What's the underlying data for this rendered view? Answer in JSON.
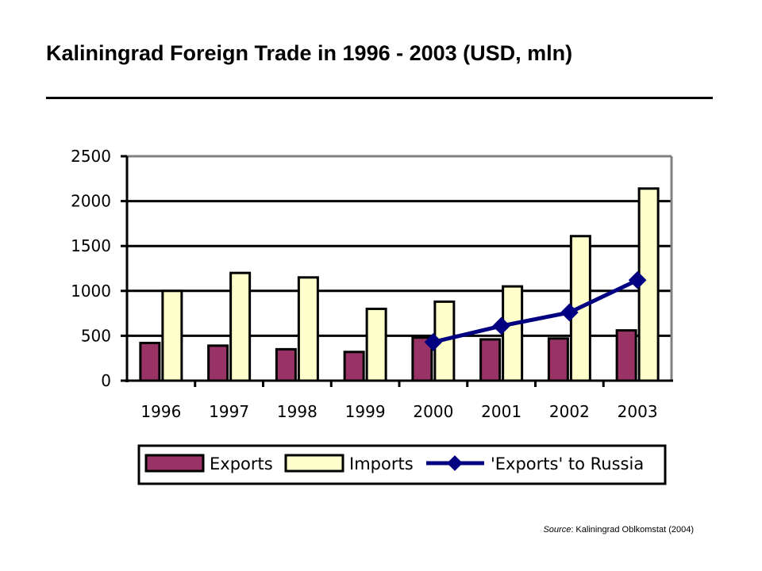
{
  "title": "Kaliningrad Foreign Trade in 1996 - 2003 (USD, mln)",
  "source": {
    "label": "Source",
    "text": ": Kaliningrad Oblkomstat (2004)"
  },
  "colors": {
    "exports": "#993366",
    "imports": "#FFFFCC",
    "russia": "#000080",
    "grid": "#000000"
  },
  "chart_data": {
    "type": "bar",
    "categories": [
      "1996",
      "1997",
      "1998",
      "1999",
      "2000",
      "2001",
      "2002",
      "2003"
    ],
    "series": [
      {
        "name": "Exports",
        "type": "bar",
        "values": [
          420,
          390,
          350,
          320,
          480,
          460,
          470,
          560
        ]
      },
      {
        "name": "Imports",
        "type": "bar",
        "values": [
          1000,
          1200,
          1150,
          800,
          880,
          1050,
          1610,
          2140
        ]
      },
      {
        "name": "'Exports' to Russia",
        "type": "line",
        "values": [
          null,
          null,
          null,
          null,
          430,
          610,
          760,
          1120
        ]
      }
    ],
    "ylim": [
      0,
      2500
    ],
    "yticks": [
      "0",
      "500",
      "1000",
      "1500",
      "2000",
      "2500"
    ],
    "grid": true,
    "legend": "bottom"
  }
}
